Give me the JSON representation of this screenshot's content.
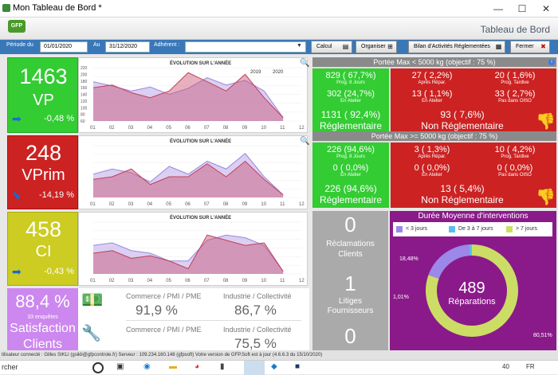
{
  "window": {
    "title": "Mon Tableau de Bord *",
    "min": "—",
    "max": "☐",
    "close": "✕"
  },
  "header": {
    "logo": "GFP",
    "title": "Tableau de Bord"
  },
  "toolbar": {
    "periode_label": "Période du",
    "date_from": "01/01/2020",
    "au_label": "Au",
    "date_to": "31/12/2020",
    "adherent_label": "Adhérent :",
    "adherent_value": "",
    "calcul": "Calcul",
    "organiser": "Organiser",
    "bilan": "Bilan d'Activités Réglementées",
    "fermer": "Fermer"
  },
  "charts": [
    {
      "title": "ÉVOLUTION SUR L'ANNÉE",
      "legend": [
        "2019",
        "2020"
      ],
      "yticks": [
        "220",
        "200",
        "180",
        "160",
        "140",
        "120",
        "100",
        "80",
        "60"
      ],
      "xticks": [
        "01",
        "02",
        "03",
        "04",
        "05",
        "06",
        "07",
        "08",
        "09",
        "10",
        "11",
        "12"
      ]
    },
    {
      "title": "ÉVOLUTION SUR L'ANNÉE",
      "xticks": [
        "01",
        "02",
        "03",
        "04",
        "05",
        "06",
        "07",
        "08",
        "09",
        "10",
        "11",
        "12"
      ]
    },
    {
      "title": "ÉVOLUTION SUR L'ANNÉE",
      "xticks": [
        "01",
        "02",
        "03",
        "04",
        "05",
        "06",
        "07",
        "08",
        "09",
        "10",
        "11",
        "12"
      ]
    }
  ],
  "chart_data": [
    {
      "type": "area",
      "x": [
        "01",
        "02",
        "03",
        "04",
        "05",
        "06",
        "07",
        "08",
        "09",
        "10",
        "11",
        "12"
      ],
      "ylim": [
        60,
        220
      ],
      "series": [
        {
          "name": "2019",
          "values": [
            178,
            165,
            150,
            162,
            140,
            158,
            190,
            168,
            182,
            150,
            70,
            null
          ]
        },
        {
          "name": "2020",
          "values": [
            160,
            168,
            145,
            130,
            150,
            205,
            178,
            150,
            200,
            130,
            70,
            null
          ]
        }
      ]
    },
    {
      "type": "area",
      "x": [
        "01",
        "02",
        "03",
        "04",
        "05",
        "06",
        "07",
        "08",
        "09",
        "10",
        "11",
        "12"
      ],
      "ylim": [
        0,
        100
      ],
      "series": [
        {
          "name": "2019",
          "values": [
            45,
            55,
            48,
            30,
            60,
            45,
            70,
            55,
            85,
            40,
            5,
            null
          ]
        },
        {
          "name": "2020",
          "values": [
            35,
            40,
            55,
            25,
            40,
            40,
            65,
            40,
            70,
            35,
            5,
            null
          ]
        }
      ]
    },
    {
      "type": "area",
      "x": [
        "01",
        "02",
        "03",
        "04",
        "05",
        "06",
        "07",
        "08",
        "09",
        "10",
        "11",
        "12"
      ],
      "ylim": [
        0,
        100
      ],
      "series": [
        {
          "name": "2019",
          "values": [
            55,
            60,
            45,
            40,
            25,
            25,
            65,
            75,
            70,
            55,
            5,
            null
          ]
        },
        {
          "name": "2020",
          "values": [
            40,
            45,
            30,
            35,
            25,
            10,
            75,
            65,
            55,
            60,
            5,
            null
          ]
        }
      ]
    }
  ],
  "kpis": [
    {
      "value": "1463",
      "label": "VP",
      "pct": "-0,48 %",
      "arrow": "➡",
      "color": "#33cc33"
    },
    {
      "value": "248",
      "label": "VPrim",
      "pct": "-14,19 %",
      "arrow": "⬊",
      "color": "#cc2222"
    },
    {
      "value": "458",
      "label": "CI",
      "pct": "-0,43 %",
      "arrow": "➡",
      "color": "#cccc22"
    }
  ],
  "satisfaction": {
    "value": "88,4 %",
    "sub": "33 enquêtes",
    "label": "Satisfaction",
    "label2": "Clients",
    "color": "#cc88ee"
  },
  "categories": {
    "row1": {
      "c1_label": "Commerce / PMI / PME",
      "c1_value": "91,9 %",
      "c2_label": "Industrie / Collectivité",
      "c2_value": "86,7 %"
    },
    "row2": {
      "c1_label": "Commerce / PMI / PME",
      "c1_value": "",
      "c2_label": "Industrie / Collectivité",
      "c2_value": "75,5 %"
    }
  },
  "portee1": {
    "header": "Portée Max < 5000 kg  (objectif : 75 %)",
    "green": [
      {
        "v": "829 ( 67,7%)",
        "s": "Prog. 8 Jours"
      },
      {
        "v": "302 (24,7%)",
        "s": "En Atelier"
      }
    ],
    "green_big": "1131 ( 92,4%)",
    "green_big_label": "Réglementaire",
    "red": [
      {
        "v": "27 ( 2,2%)",
        "s": "Après Répar."
      },
      {
        "v": "20 ( 1,6%)",
        "s": "Prog. Tardive"
      },
      {
        "v": "13 ( 1,1%)",
        "s": "En Atelier"
      },
      {
        "v": "33 ( 2,7%)",
        "s": "Pas dans OISO"
      }
    ],
    "red_big": "93 ( 7,6%)",
    "red_big_label": "Non Réglementaire"
  },
  "portee2": {
    "header": "Portée Max >= 5000 kg  (objectif : 75 %)",
    "green": [
      {
        "v": "226 (94,6%)",
        "s": "Prog. 8 Jours"
      },
      {
        "v": "0 ( 0,0%)",
        "s": "En Atelier"
      }
    ],
    "green_big": "226 (94,6%)",
    "green_big_label": "Réglementaire",
    "red": [
      {
        "v": "3 ( 1,3%)",
        "s": "Après Répar."
      },
      {
        "v": "10 ( 4,2%)",
        "s": "Prog. Tardive"
      },
      {
        "v": "0 ( 0,0%)",
        "s": "En Atelier"
      },
      {
        "v": "0 ( 0,0%)",
        "s": "Pas dans OISO"
      }
    ],
    "red_big": "13 ( 5,4%)",
    "red_big_label": "Non Réglementaire"
  },
  "reclamations": {
    "v1": "0",
    "l1a": "Réclamations",
    "l1b": "Clients",
    "v2": "1",
    "l2a": "Litiges",
    "l2b": "Fournisseurs",
    "v3": "0"
  },
  "duree": {
    "title": "Durée Moyenne d'interventions",
    "legend": [
      {
        "label": "< 3 jours",
        "color": "#9b88e8"
      },
      {
        "label": "De 3 à 7 jours",
        "color": "#5bc0eb"
      },
      {
        "label": "> 7 jours",
        "color": "#ccdd66"
      }
    ],
    "center_value": "489",
    "center_label": "Réparations",
    "slices": [
      {
        "pct": "18,48%",
        "value": 18.48
      },
      {
        "pct": "1,01%",
        "value": 1.01
      },
      {
        "pct": "80,51%",
        "value": 80.51
      }
    ]
  },
  "status": "tilisateur connecté : Gilles SIKLI   (gsikli@gfpcontrole.fr)     Serveur : 109.234.160.148 (gfpsoft)   Votre version de GFP.Soft est à jour (4.6.6.3 du 15/10/2020)",
  "taskbar": {
    "search": "rcher",
    "lang": "FR",
    "badge": "40"
  }
}
